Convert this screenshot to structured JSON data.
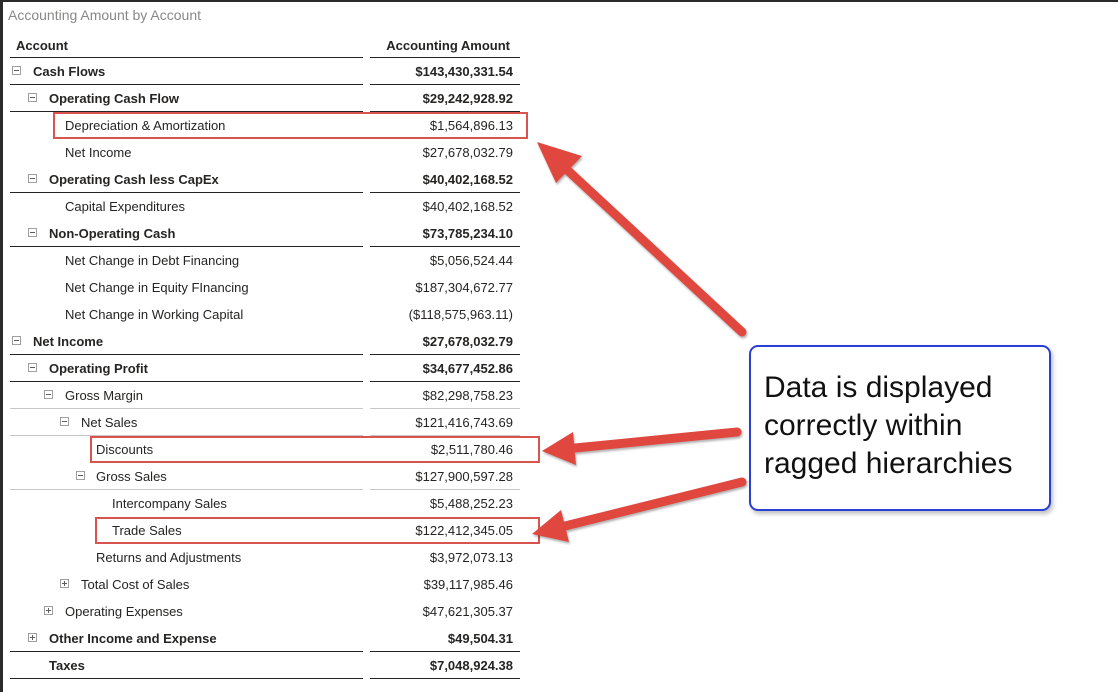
{
  "visual_title": "Accounting Amount by Account",
  "columns": {
    "account": "Account",
    "amount": "Accounting Amount"
  },
  "rows": [
    {
      "label": "Cash Flows",
      "value": "$143,430,331.54",
      "level": 0,
      "toggle": "minus",
      "bold": true,
      "highlighted": false
    },
    {
      "label": "Operating Cash Flow",
      "value": "$29,242,928.92",
      "level": 1,
      "toggle": "minus",
      "bold": true,
      "highlighted": false
    },
    {
      "label": "Depreciation & Amortization",
      "value": "$1,564,896.13",
      "level": 2,
      "toggle": "none",
      "bold": false,
      "highlighted": true
    },
    {
      "label": "Net Income",
      "value": "$27,678,032.79",
      "level": 2,
      "toggle": "none",
      "bold": false,
      "highlighted": false
    },
    {
      "label": "Operating Cash less CapEx",
      "value": "$40,402,168.52",
      "level": 1,
      "toggle": "minus",
      "bold": true,
      "highlighted": false
    },
    {
      "label": "Capital Expenditures",
      "value": "$40,402,168.52",
      "level": 2,
      "toggle": "none",
      "bold": false,
      "highlighted": false
    },
    {
      "label": "Non-Operating Cash",
      "value": "$73,785,234.10",
      "level": 1,
      "toggle": "minus",
      "bold": true,
      "highlighted": false
    },
    {
      "label": "Net Change in Debt Financing",
      "value": "$5,056,524.44",
      "level": 2,
      "toggle": "none",
      "bold": false,
      "highlighted": false
    },
    {
      "label": "Net Change in Equity FInancing",
      "value": "$187,304,672.77",
      "level": 2,
      "toggle": "none",
      "bold": false,
      "highlighted": false
    },
    {
      "label": "Net Change in Working Capital",
      "value": "($118,575,963.11)",
      "level": 2,
      "toggle": "none",
      "bold": false,
      "highlighted": false
    },
    {
      "label": "Net Income",
      "value": "$27,678,032.79",
      "level": 0,
      "toggle": "minus",
      "bold": true,
      "highlighted": false
    },
    {
      "label": "Operating Profit",
      "value": "$34,677,452.86",
      "level": 1,
      "toggle": "minus",
      "bold": true,
      "highlighted": false
    },
    {
      "label": "Gross Margin",
      "value": "$82,298,758.23",
      "level": 2,
      "toggle": "minus",
      "bold": false,
      "highlighted": false
    },
    {
      "label": "Net Sales",
      "value": "$121,416,743.69",
      "level": 3,
      "toggle": "minus",
      "bold": false,
      "highlighted": false
    },
    {
      "label": "Discounts",
      "value": "$2,511,780.46",
      "level": 4,
      "toggle": "none",
      "bold": false,
      "highlighted": true
    },
    {
      "label": "Gross Sales",
      "value": "$127,900,597.28",
      "level": 4,
      "toggle": "minus",
      "bold": false,
      "highlighted": false
    },
    {
      "label": "Intercompany Sales",
      "value": "$5,488,252.23",
      "level": 5,
      "toggle": "none",
      "bold": false,
      "highlighted": false
    },
    {
      "label": "Trade Sales",
      "value": "$122,412,345.05",
      "level": 5,
      "toggle": "none",
      "bold": false,
      "highlighted": true
    },
    {
      "label": "Returns and Adjustments",
      "value": "$3,972,073.13",
      "level": 4,
      "toggle": "none",
      "bold": false,
      "highlighted": false
    },
    {
      "label": "Total Cost of Sales",
      "value": "$39,117,985.46",
      "level": 3,
      "toggle": "plus",
      "bold": false,
      "highlighted": false
    },
    {
      "label": "Operating Expenses",
      "value": "$47,621,305.37",
      "level": 2,
      "toggle": "plus",
      "bold": false,
      "highlighted": false
    },
    {
      "label": "Other Income and Expense",
      "value": "$49,504.31",
      "level": 1,
      "toggle": "plus",
      "bold": true,
      "highlighted": false
    },
    {
      "label": "Taxes",
      "value": "$7,048,924.38",
      "level": 1,
      "toggle": "none",
      "bold": true,
      "highlighted": false
    }
  ],
  "callout": {
    "text": "Data is displayed\ncorrectly within\nragged hierarchies"
  },
  "colors": {
    "highlight": "#d9534f",
    "arrow": "#e0483f",
    "callout_border": "#2a3fd6"
  }
}
